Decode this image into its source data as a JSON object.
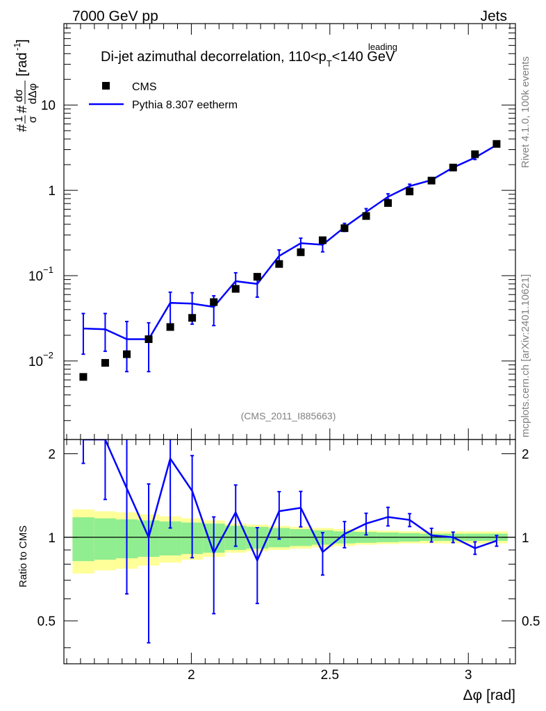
{
  "header": {
    "left": "7000 GeV pp",
    "right": "Jets"
  },
  "side": {
    "rivet": "Rivet 4.1.0,  100k events",
    "mcplots": "mcplots.cern.ch [arXiv:2401.10621]"
  },
  "colors": {
    "mc": "#0000ff",
    "green": "#90ee90",
    "yellow": "#ffff99",
    "data": "#000000"
  },
  "chart_data": {
    "type": "scatter",
    "title": "Di-jet azimuthal decorrelation, 110<p_T^leading<140 GeV",
    "title_main": "Di-jet azimuthal decorrelation, 110<p",
    "title_sup": "leading",
    "title_sub": "T",
    "title_end": "<140 GeV",
    "analysis_id": "(CMS_2011_I885663)",
    "xlabel": "Δφ [rad]",
    "ylabel": "#1/σ #dσ/dΔφ [rad⁻¹]",
    "ylabel_parts": {
      "hash1": "#",
      "frac1_num": "1",
      "frac1_den": "σ",
      "hash2": "#",
      "frac2_num": "dσ",
      "frac2_den": "dΔφ",
      "unit": "[rad",
      "unit_sup": "-1",
      "unit_close": "]"
    },
    "ratio_ylabel": "Ratio to CMS",
    "xlim": [
      1.54,
      3.17
    ],
    "ylim": [
      0.0012,
      90
    ],
    "ratio_ylim": [
      0.35,
      2.25
    ],
    "x_ticks": [
      {
        "v": 2.0,
        "label": "2"
      },
      {
        "v": 2.5,
        "label": "2.5"
      },
      {
        "v": 3.0,
        "label": "3"
      }
    ],
    "y_ticks": [
      {
        "v": 0.01,
        "base": "10",
        "exp": "−2"
      },
      {
        "v": 0.1,
        "base": "10",
        "exp": "−1"
      },
      {
        "v": 1,
        "base": "1",
        "exp": ""
      },
      {
        "v": 10,
        "base": "10",
        "exp": ""
      }
    ],
    "ratio_ticks": [
      {
        "v": 0.5,
        "label": "0.5"
      },
      {
        "v": 1,
        "label": "1"
      },
      {
        "v": 2,
        "label": "2"
      }
    ],
    "legend": [
      {
        "label": "CMS",
        "kind": "marker"
      },
      {
        "label": "Pythia 8.307 eetherm",
        "kind": "line"
      }
    ],
    "x": [
      1.61,
      1.689,
      1.767,
      1.846,
      1.924,
      2.003,
      2.081,
      2.16,
      2.238,
      2.317,
      2.395,
      2.474,
      2.553,
      2.631,
      2.71,
      2.788,
      2.867,
      2.945,
      3.024,
      3.102
    ],
    "edges": [
      1.571,
      1.65,
      1.728,
      1.807,
      1.885,
      1.964,
      2.042,
      2.121,
      2.199,
      2.278,
      2.356,
      2.435,
      2.513,
      2.592,
      2.67,
      2.749,
      2.827,
      2.906,
      2.985,
      3.063,
      3.142
    ],
    "series": [
      {
        "name": "CMS",
        "values": [
          0.0065,
          0.0095,
          0.012,
          0.018,
          0.025,
          0.032,
          0.049,
          0.07,
          0.097,
          0.137,
          0.188,
          0.26,
          0.36,
          0.5,
          0.71,
          0.97,
          1.3,
          1.85,
          2.65,
          3.5
        ],
        "rel_err_stat": [
          0.18,
          0.17,
          0.16,
          0.15,
          0.14,
          0.13,
          0.12,
          0.1,
          0.09,
          0.08,
          0.07,
          0.06,
          0.05,
          0.045,
          0.04,
          0.035,
          0.03,
          0.03,
          0.03,
          0.03
        ],
        "rel_err_total": [
          0.26,
          0.24,
          0.23,
          0.21,
          0.19,
          0.17,
          0.15,
          0.12,
          0.11,
          0.1,
          0.09,
          0.08,
          0.07,
          0.06,
          0.055,
          0.05,
          0.05,
          0.05,
          0.05,
          0.05
        ]
      },
      {
        "name": "Pythia 8.307 eetherm",
        "values": [
          0.024,
          0.0235,
          0.018,
          0.018,
          0.048,
          0.047,
          0.043,
          0.086,
          0.08,
          0.17,
          0.24,
          0.23,
          0.37,
          0.56,
          0.84,
          1.12,
          1.32,
          1.85,
          2.42,
          3.4
        ],
        "err_low": [
          0.012,
          0.013,
          0.0075,
          0.0075,
          0.027,
          0.027,
          0.026,
          0.065,
          0.056,
          0.135,
          0.205,
          0.19,
          0.33,
          0.51,
          0.78,
          1.06,
          1.25,
          1.77,
          2.3,
          3.25
        ],
        "err_high": [
          0.036,
          0.036,
          0.029,
          0.028,
          0.064,
          0.063,
          0.058,
          0.108,
          0.105,
          0.2,
          0.275,
          0.27,
          0.41,
          0.61,
          0.91,
          1.18,
          1.4,
          1.93,
          2.55,
          3.55
        ]
      }
    ]
  }
}
